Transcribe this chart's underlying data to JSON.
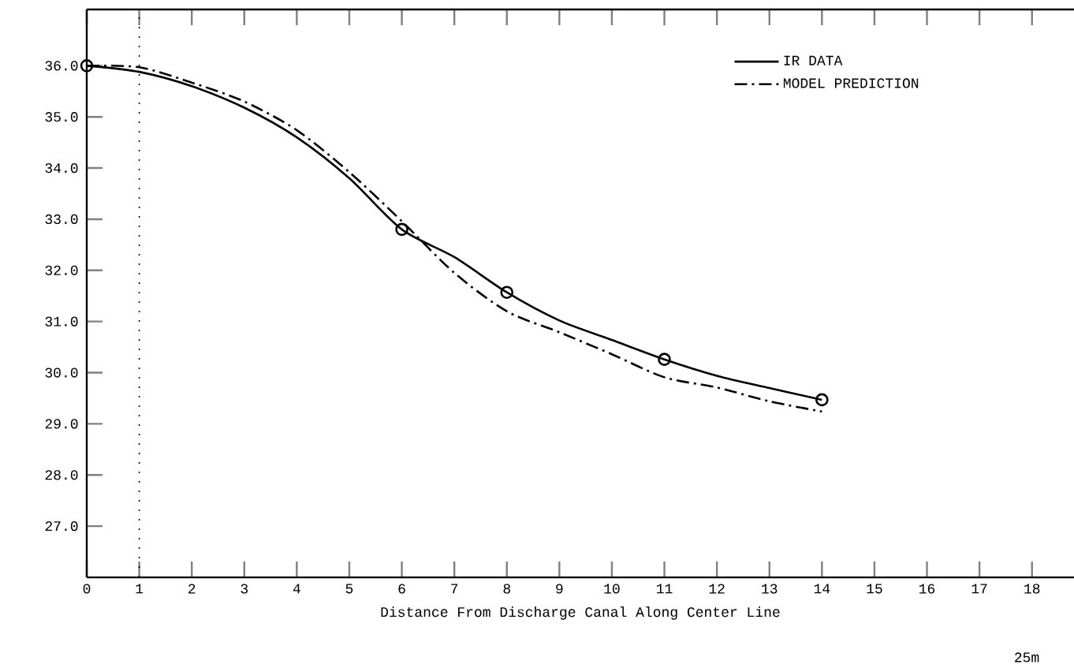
{
  "chart_data": {
    "type": "line",
    "xlabel": "Distance From Discharge Canal Along Center Line",
    "xlim": [
      0,
      18.8
    ],
    "xticks": [
      0,
      1,
      2,
      3,
      4,
      5,
      6,
      7,
      8,
      9,
      10,
      11,
      12,
      13,
      14,
      15,
      16,
      17,
      18
    ],
    "ylim": [
      26,
      37.1
    ],
    "yticks": [
      {
        "value": 27,
        "label": "27.0"
      },
      {
        "value": 28,
        "label": "28.0"
      },
      {
        "value": 29,
        "label": "29.0"
      },
      {
        "value": 30,
        "label": "30.0"
      },
      {
        "value": 31,
        "label": "31.0"
      },
      {
        "value": 32,
        "label": "32.0"
      },
      {
        "value": 33,
        "label": "33.0"
      },
      {
        "value": 34,
        "label": "34.0"
      },
      {
        "value": 35,
        "label": "35.0"
      },
      {
        "value": 36,
        "label": "36.0"
      }
    ],
    "series": [
      {
        "name": "IR DATA",
        "color": "#000000",
        "line_style": "solid",
        "marker": "none",
        "x": [
          0,
          1,
          2,
          3,
          4,
          5,
          6,
          7,
          8,
          9,
          10,
          11,
          12,
          13,
          14
        ],
        "values": [
          36.0,
          35.88,
          35.6,
          35.18,
          34.6,
          33.8,
          32.8,
          32.26,
          31.57,
          31.02,
          30.64,
          30.26,
          29.94,
          29.7,
          29.47
        ]
      },
      {
        "name": "MODEL PREDICTION",
        "color": "#000000",
        "line_style": "dashed",
        "marker": "none",
        "x": [
          0,
          1,
          2,
          3,
          4,
          5,
          6,
          7,
          8,
          9,
          10,
          11,
          12,
          13,
          14
        ],
        "values": [
          36.0,
          35.97,
          35.67,
          35.3,
          34.74,
          33.92,
          32.96,
          31.95,
          31.2,
          30.79,
          30.36,
          29.91,
          29.71,
          29.44,
          29.24
        ]
      },
      {
        "type": "scatter",
        "color": "#000000",
        "marker": "circle",
        "x": [
          0,
          6,
          8,
          11,
          14
        ],
        "values": [
          36.0,
          32.8,
          31.57,
          30.26,
          29.47
        ]
      }
    ],
    "ref_lines": [
      {
        "axis": "x",
        "value": 1,
        "color": "#000000",
        "line_style": "dotted"
      }
    ],
    "annotations": [
      "25m"
    ],
    "legend": "top right",
    "grid": false
  }
}
